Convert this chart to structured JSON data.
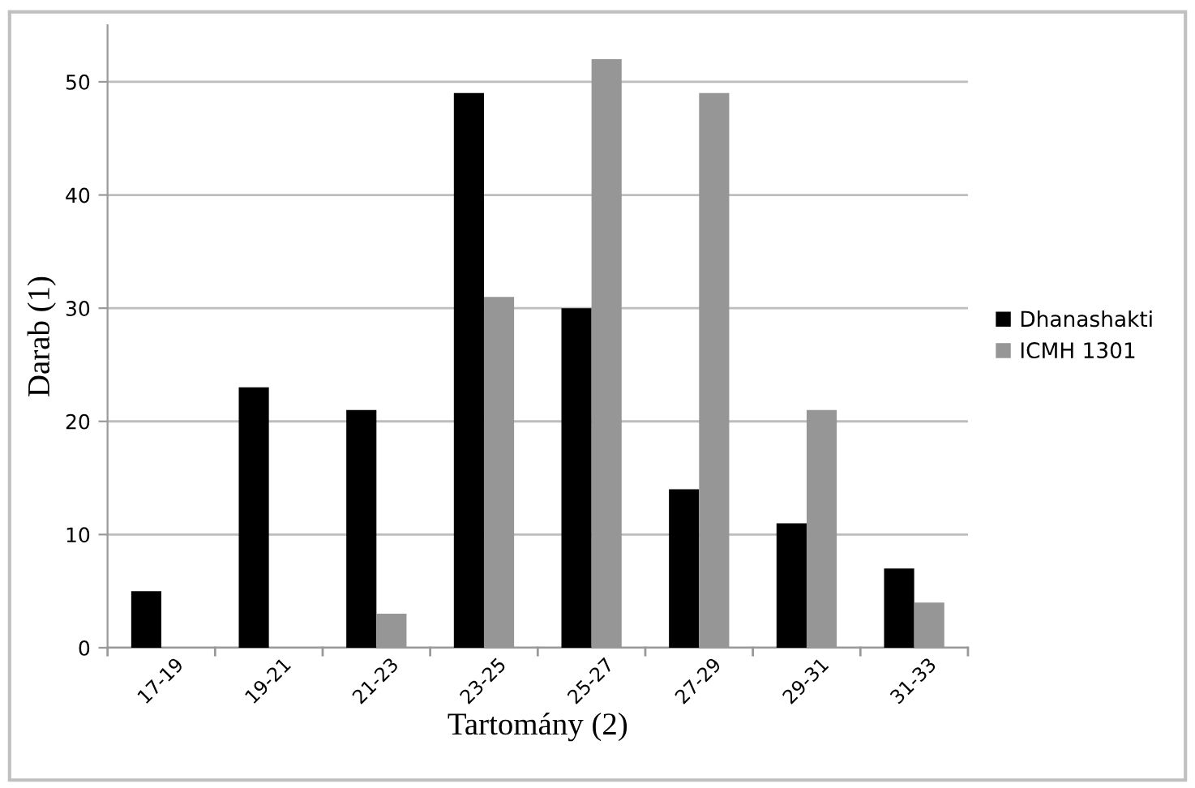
{
  "chart_data": {
    "type": "bar",
    "xlabel": "Tartomány (2)",
    "ylabel": "Darab (1)",
    "categories": [
      "17-19",
      "19-21",
      "21-23",
      "23-25",
      "25-27",
      "27-29",
      "29-31",
      "31-33"
    ],
    "series": [
      {
        "name": "Dhanashakti",
        "color": "#000000",
        "values": [
          5,
          23,
          21,
          49,
          30,
          14,
          11,
          7
        ]
      },
      {
        "name": "ICMH 1301",
        "color": "#969696",
        "values": [
          0,
          0,
          3,
          31,
          52,
          49,
          21,
          4
        ]
      }
    ],
    "ylim": [
      0,
      55
    ],
    "yticks": [
      0,
      10,
      20,
      30,
      40,
      50
    ],
    "grid": "y",
    "legend": "right"
  }
}
